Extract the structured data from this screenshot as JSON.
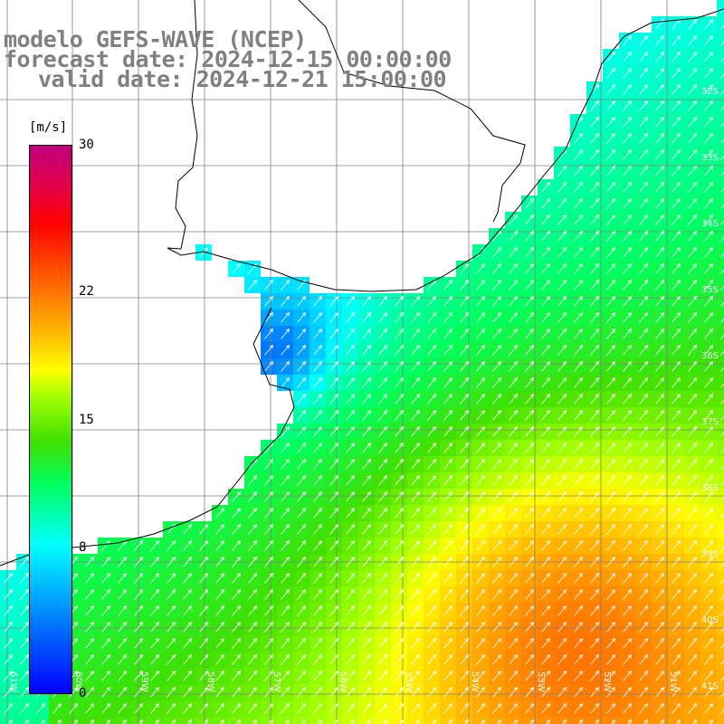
{
  "title": {
    "line1": "modelo GEFS-WAVE (NCEP)",
    "line2": "forecast date: 2024-12-15 00:00:00",
    "line3": "valid date: 2024-12-21 15:00:00"
  },
  "colorbar": {
    "unit": "[m/s]",
    "min": 0,
    "max": 30,
    "ticks": [
      "30",
      "22",
      "15",
      "8",
      "0"
    ],
    "tick_values": [
      30,
      22,
      15,
      8,
      0
    ]
  },
  "axes": {
    "lat_labels": [
      "32S",
      "33S",
      "34S",
      "35S",
      "36S",
      "37S",
      "38S",
      "39S",
      "40S",
      "41S"
    ],
    "lon_labels": [
      "61W",
      "60W",
      "59W",
      "58W",
      "57W",
      "56W",
      "55W",
      "54W",
      "53W",
      "52W",
      "51W"
    ]
  },
  "field": {
    "variable": "wind speed",
    "colors": {
      "land": "#ffffff",
      "coast": "#000000",
      "grid": "#808080",
      "arrows": "#ffffff"
    }
  }
}
